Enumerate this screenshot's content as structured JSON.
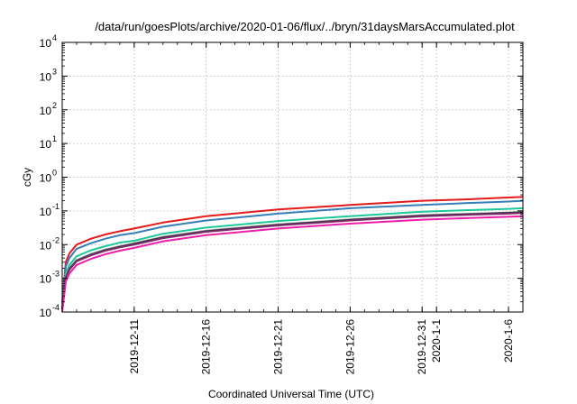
{
  "chart_data": {
    "type": "line",
    "title": "/data/run/goesPlots/archive/2020-01-06/flux/../bryn/31daysMarsAccumulated.plot",
    "xlabel": "Coordinated Universal Time (UTC)",
    "ylabel": "cGy",
    "yscale": "log",
    "ylim": [
      0.0001,
      10000
    ],
    "xlim": [
      "2019-12-06",
      "2020-01-07"
    ],
    "grid": true,
    "y_ticks": [
      {
        "base": "10",
        "exp": "4",
        "value": 10000
      },
      {
        "base": "10",
        "exp": "3",
        "value": 1000
      },
      {
        "base": "10",
        "exp": "2",
        "value": 100
      },
      {
        "base": "10",
        "exp": "1",
        "value": 10
      },
      {
        "base": "10",
        "exp": "0",
        "value": 1
      },
      {
        "base": "10",
        "exp": "-1",
        "value": 0.1
      },
      {
        "base": "10",
        "exp": "-2",
        "value": 0.01
      },
      {
        "base": "10",
        "exp": "-3",
        "value": 0.001
      },
      {
        "base": "10",
        "exp": "-4",
        "value": 0.0001
      }
    ],
    "x_ticks": [
      {
        "label": "2019-12-11",
        "date": "2019-12-11"
      },
      {
        "label": "2019-12-16",
        "date": "2019-12-16"
      },
      {
        "label": "2019-12-21",
        "date": "2019-12-21"
      },
      {
        "label": "2019-12-26",
        "date": "2019-12-26"
      },
      {
        "label": "2019-12-31",
        "date": "2019-12-31"
      },
      {
        "label": "2020-1-1",
        "date": "2020-01-01"
      },
      {
        "label": "2020-1-6",
        "date": "2020-01-06"
      }
    ],
    "x": [
      "2019-12-06",
      "2019-12-06T06:00",
      "2019-12-06T12:00",
      "2019-12-07",
      "2019-12-08",
      "2019-12-09",
      "2019-12-10",
      "2019-12-11",
      "2019-12-13",
      "2019-12-16",
      "2019-12-21",
      "2019-12-26",
      "2019-12-31",
      "2020-01-03",
      "2020-01-06",
      "2020-01-07"
    ],
    "series": [
      {
        "color": "#e41a1c",
        "values": [
          0.0002,
          0.003,
          0.0055,
          0.01,
          0.015,
          0.02,
          0.025,
          0.03,
          0.045,
          0.07,
          0.11,
          0.15,
          0.2,
          0.22,
          0.25,
          0.26
        ]
      },
      {
        "color": "#377eb8",
        "values": [
          0.00018,
          0.0022,
          0.004,
          0.0075,
          0.011,
          0.015,
          0.019,
          0.022,
          0.034,
          0.052,
          0.083,
          0.12,
          0.15,
          0.17,
          0.19,
          0.2
        ]
      },
      {
        "color": "#1ec898",
        "values": [
          0.00015,
          0.0014,
          0.0025,
          0.0045,
          0.0068,
          0.009,
          0.0115,
          0.013,
          0.021,
          0.032,
          0.05,
          0.07,
          0.095,
          0.105,
          0.115,
          0.12
        ]
      },
      {
        "color": "#9e9e9e",
        "values": [
          0.00013,
          0.0011,
          0.002,
          0.0035,
          0.0053,
          0.0072,
          0.009,
          0.011,
          0.017,
          0.026,
          0.04,
          0.056,
          0.075,
          0.082,
          0.09,
          0.095
        ]
      },
      {
        "color": "#2a2a2a",
        "values": [
          0.000125,
          0.00105,
          0.0019,
          0.0033,
          0.005,
          0.0068,
          0.0086,
          0.0105,
          0.0162,
          0.0248,
          0.0385,
          0.054,
          0.072,
          0.079,
          0.087,
          0.09
        ]
      },
      {
        "color": "#7b2b6e",
        "values": [
          0.00012,
          0.001,
          0.0018,
          0.0032,
          0.0048,
          0.0066,
          0.0083,
          0.01,
          0.0155,
          0.024,
          0.037,
          0.052,
          0.069,
          0.076,
          0.083,
          0.087
        ]
      },
      {
        "color": "#ee1ea8",
        "values": [
          0.0001,
          0.0008,
          0.0014,
          0.0025,
          0.0038,
          0.0052,
          0.0066,
          0.008,
          0.0125,
          0.019,
          0.03,
          0.042,
          0.055,
          0.061,
          0.067,
          0.07
        ]
      }
    ]
  }
}
